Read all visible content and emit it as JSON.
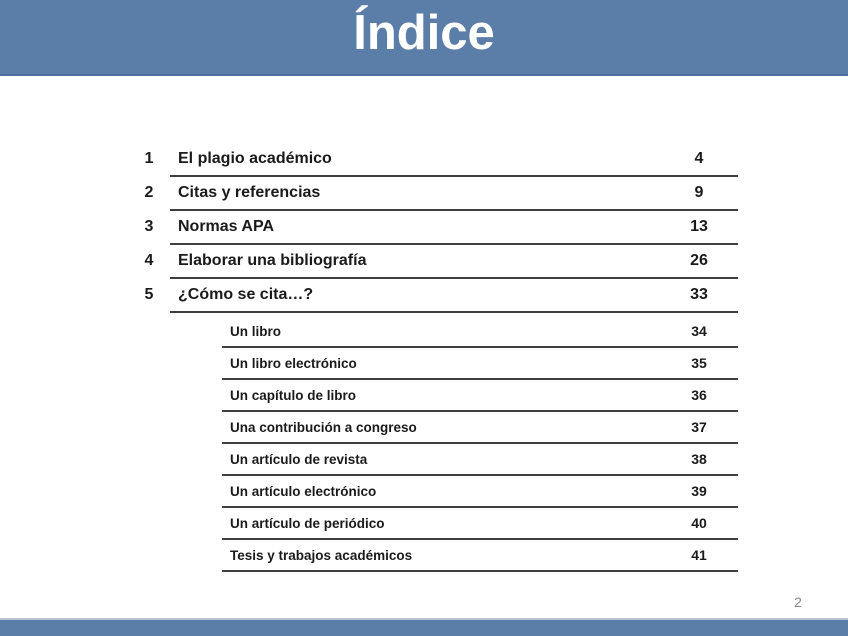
{
  "slide": {
    "title": "Índice",
    "page_number": "2",
    "colors": {
      "band_blue": "#5B7EA8",
      "band_top_edge": "#50719B",
      "band_bottom_edge": "#B7C1D0",
      "rule_line": "#3F3F3F",
      "text": "#1A1A1A",
      "page_number_gray": "#8A8A8A",
      "title_text": "#FFFFFF"
    }
  },
  "toc": {
    "main_items": [
      {
        "num": "1",
        "label": "El plagio académico",
        "page": "4"
      },
      {
        "num": "2",
        "label": "Citas y referencias",
        "page": "9"
      },
      {
        "num": "3",
        "label": "Normas APA",
        "page": "13"
      },
      {
        "num": "4",
        "label": "Elaborar una bibliografía",
        "page": "26"
      },
      {
        "num": "5",
        "label": "¿Cómo se cita…?",
        "page": "33"
      }
    ],
    "sub_items": [
      {
        "label": "Un libro",
        "page": "34"
      },
      {
        "label": "Un libro electrónico",
        "page": "35"
      },
      {
        "label": "Un capítulo de libro",
        "page": "36"
      },
      {
        "label": "Una contribución a congreso",
        "page": "37"
      },
      {
        "label": "Un artículo de revista",
        "page": "38"
      },
      {
        "label": "Un artículo electrónico",
        "page": "39"
      },
      {
        "label": "Un artículo de periódico",
        "page": "40"
      },
      {
        "label": "Tesis y trabajos académicos",
        "page": "41"
      }
    ],
    "layout": {
      "main_row_top_start": 143,
      "main_row_pitch": 34,
      "sub_row_top_start": 316,
      "sub_row_pitch": 32
    }
  }
}
